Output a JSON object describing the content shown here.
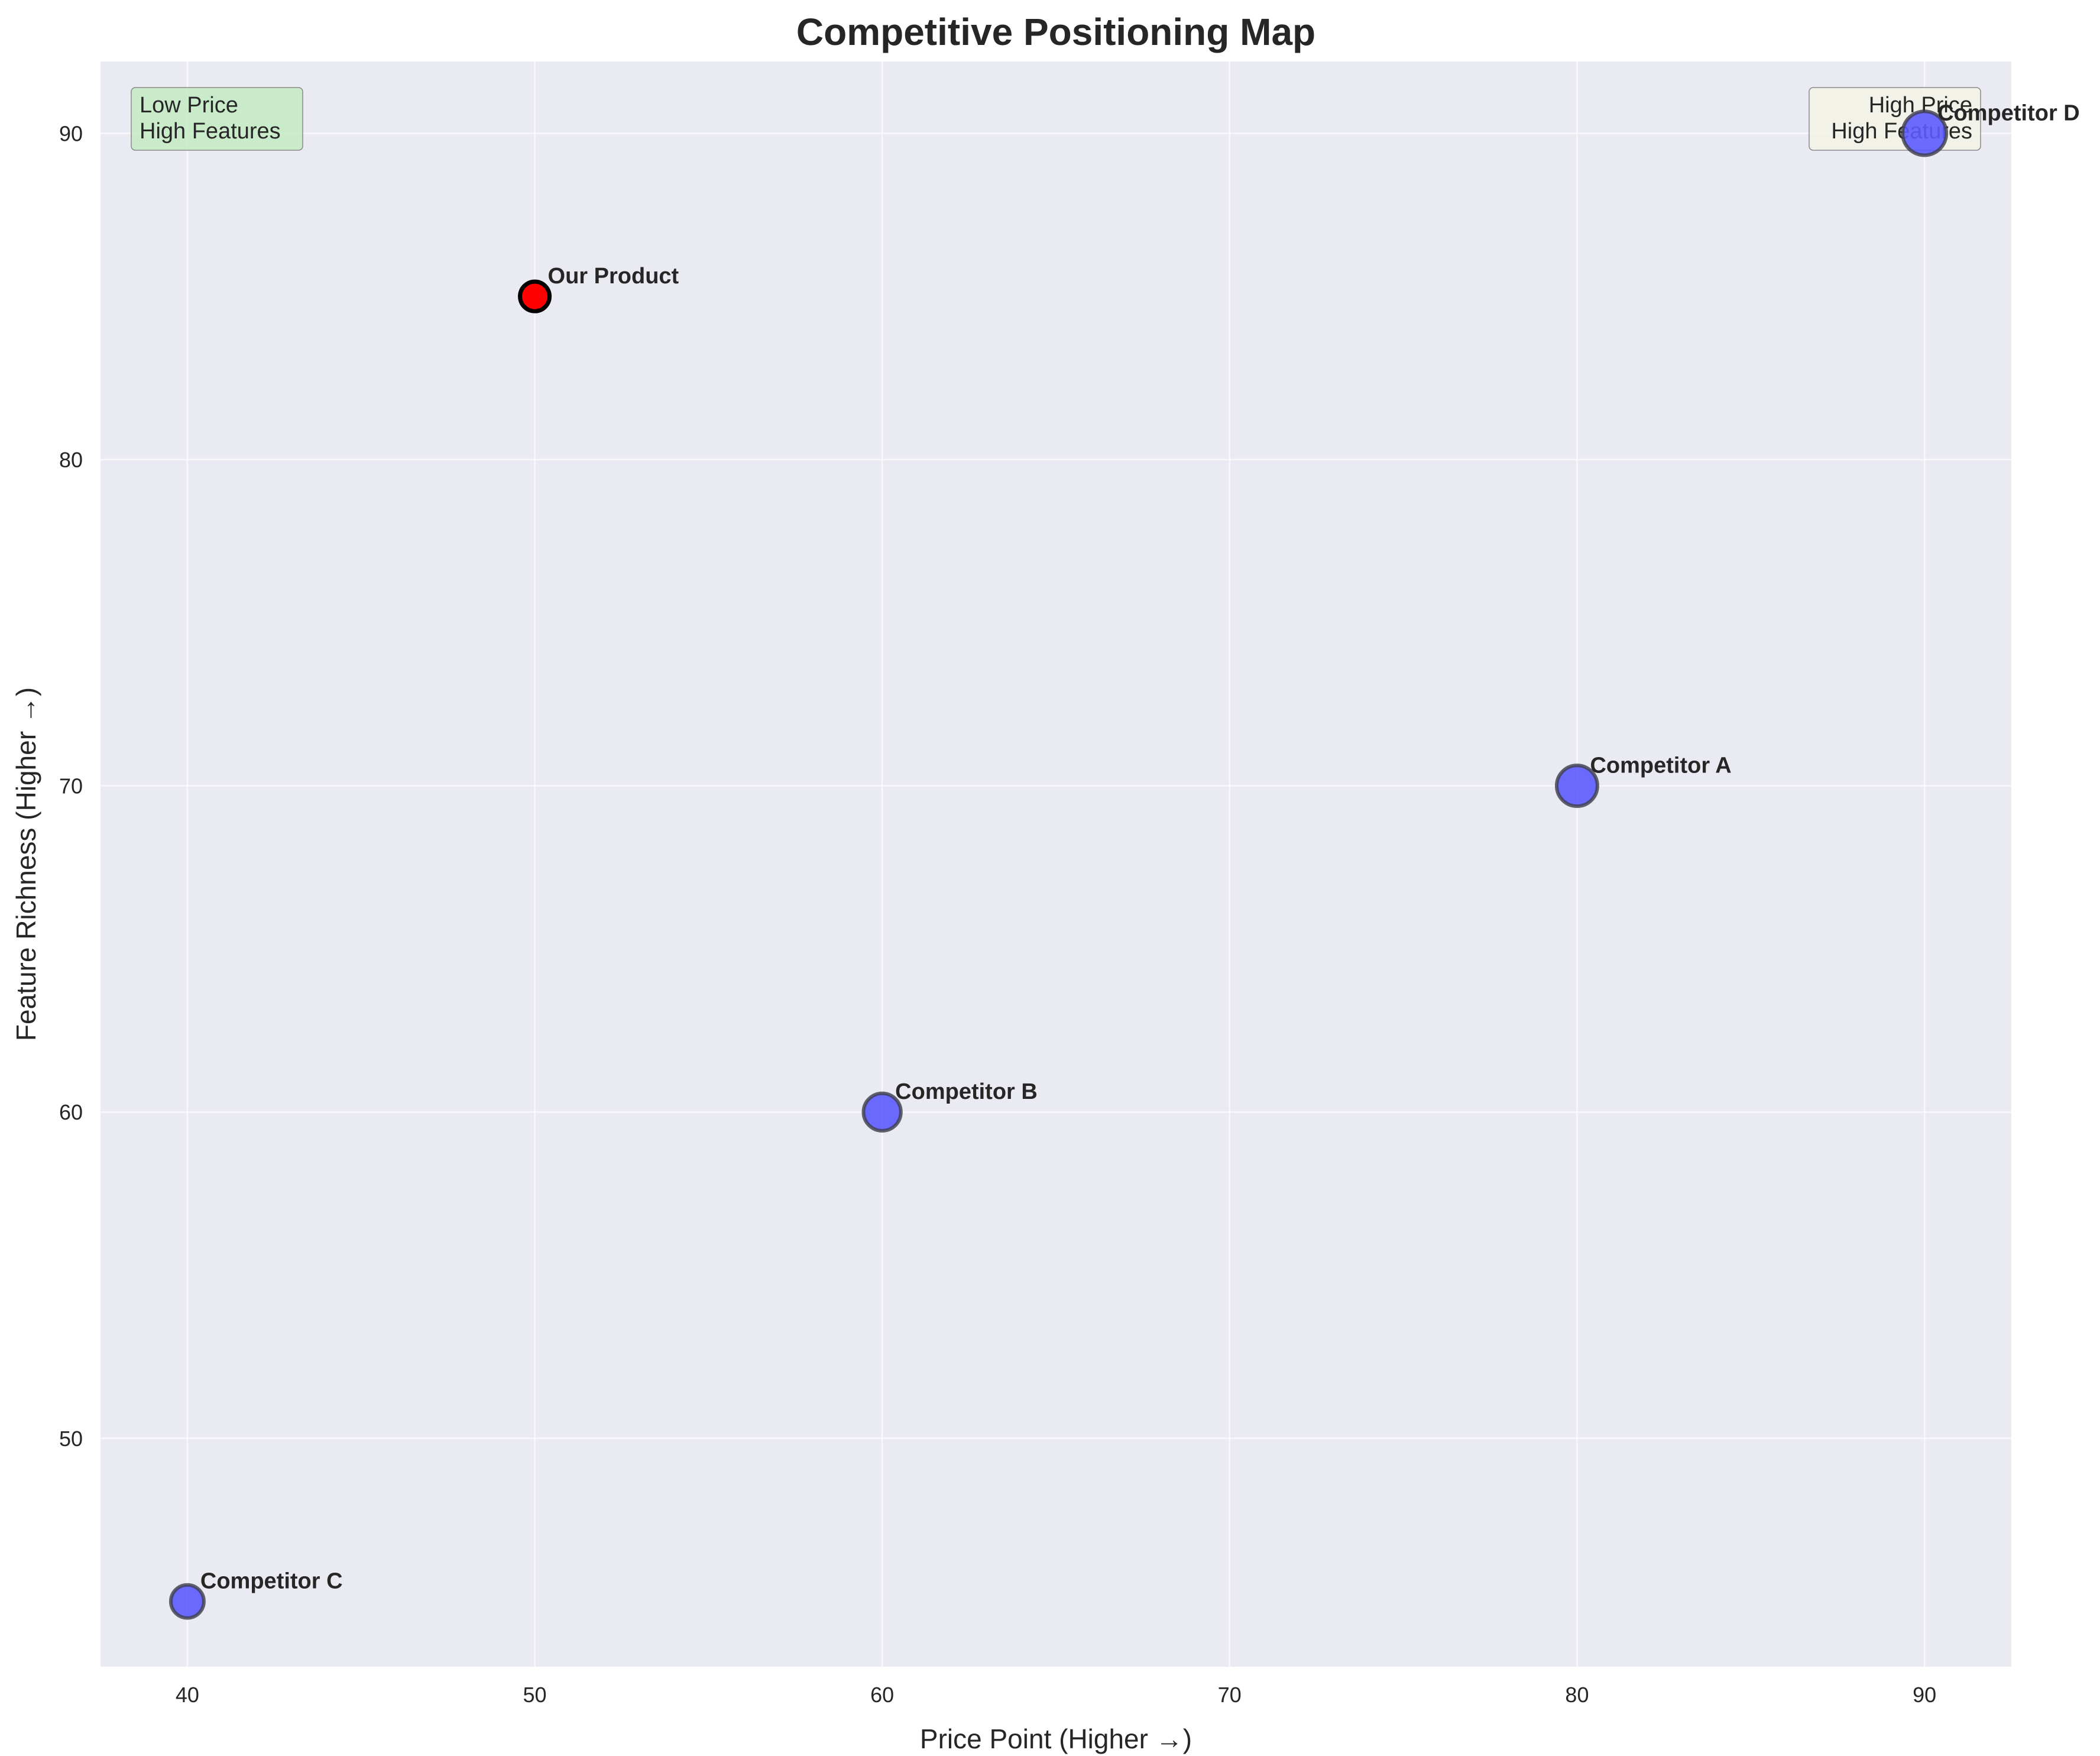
{
  "chart_data": {
    "type": "scatter",
    "title": "Competitive Positioning Map",
    "xlabel": "Price Point (Higher →)",
    "ylabel": "Feature Richness (Higher →)",
    "xlim": [
      37.5,
      92.5
    ],
    "ylim": [
      43,
      92.2
    ],
    "xticks": [
      40,
      50,
      60,
      70,
      80,
      90
    ],
    "yticks": [
      50,
      60,
      70,
      80,
      90
    ],
    "grid": true,
    "background": "#eaeaf2",
    "points": [
      {
        "name": "Our Product",
        "x": 50,
        "y": 85,
        "size": 1,
        "color": "#ff0000",
        "edge": "#000000",
        "highlight": true
      },
      {
        "name": "Competitor A",
        "x": 80,
        "y": 70,
        "size": 1.9,
        "color": "#5b5bff",
        "edge": "#3d3d4a",
        "highlight": false
      },
      {
        "name": "Competitor B",
        "x": 60,
        "y": 60,
        "size": 1.6,
        "color": "#5b5bff",
        "edge": "#3d3d4a",
        "highlight": false
      },
      {
        "name": "Competitor C",
        "x": 40,
        "y": 45,
        "size": 1.25,
        "color": "#5b5bff",
        "edge": "#3d3d4a",
        "highlight": false
      },
      {
        "name": "Competitor D",
        "x": 90,
        "y": 90,
        "size": 2.2,
        "color": "#5b5bff",
        "edge": "#3d3d4a",
        "highlight": false
      }
    ],
    "annotations": [
      {
        "text_lines": [
          "Low Price",
          "High Features"
        ],
        "position": "top-left",
        "facecolor": "#c3ebc3"
      },
      {
        "text_lines": [
          "High Price",
          "High Features"
        ],
        "position": "top-right",
        "facecolor": "#f3f3e6"
      }
    ]
  }
}
